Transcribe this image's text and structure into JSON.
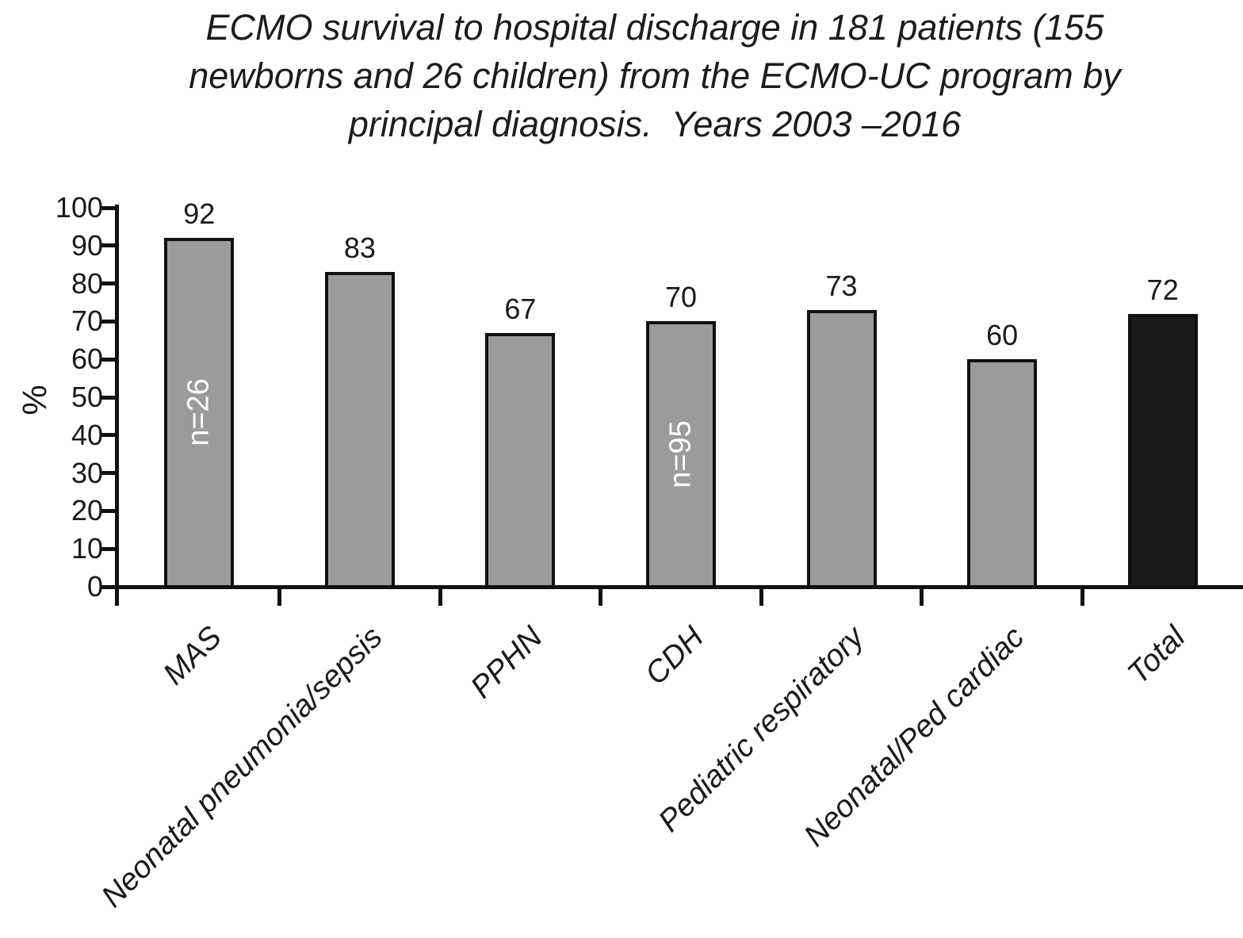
{
  "figure": {
    "title_full": "ECMO survival to hospital discharge in 181 patients (155 newborns and 26 children) from the ECMO-UC program by principal diagnosis. Years 2003 –2016"
  },
  "chart_data": {
    "type": "bar",
    "title": "ECMO survival to hospital discharge in 181 patients (155 newborns and 26 children) from the ECMO-UC program by principal diagnosis. Years 2003 –2016",
    "title_lines": [
      "ECMO survival to hospital discharge in 181 patients (155",
      "newborns and 26 children) from the ECMO-UC program by",
      "principal diagnosis.  Years 2003 –2016"
    ],
    "categories": [
      "MAS",
      "Neonatal pneumonia/sepsis",
      "PPHN",
      "CDH",
      "Pediatric respiratory",
      "Neonatal/Ped cardiac",
      "Total"
    ],
    "values": [
      92,
      83,
      67,
      70,
      73,
      60,
      72
    ],
    "bar_annotations": [
      "n=26",
      "",
      "",
      "n=95",
      "",
      "",
      ""
    ],
    "value_labels_shown": true,
    "xlabel": "",
    "ylabel": "%",
    "ylim": [
      0,
      100
    ],
    "yticks": [
      0,
      10,
      20,
      30,
      40,
      50,
      60,
      70,
      80,
      90,
      100
    ],
    "grid": false,
    "legend": null,
    "highlight_index": 6,
    "colors": {
      "bar_fill": "#9b9b9b",
      "highlight_bar_fill": "#1b1b1b",
      "bar_border": "#111111",
      "axis": "#111111",
      "annotation_text": "#ffffff",
      "text": "#1a1a1a"
    }
  }
}
